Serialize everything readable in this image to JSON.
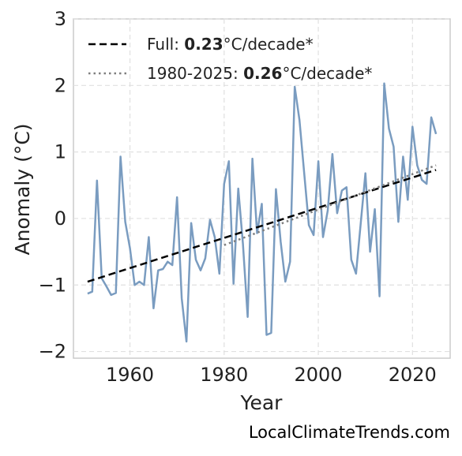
{
  "credit": "LocalClimateTrends.com",
  "legend": [
    {
      "prefix": "Full: ",
      "value": "0.23",
      "suffix": "°C/decade*",
      "style": "dashed",
      "color": "#000000"
    },
    {
      "prefix": "1980-2025: ",
      "value": "0.26",
      "suffix": "°C/decade*",
      "style": "dotted",
      "color": "#7f7f7f"
    }
  ],
  "chart_data": {
    "type": "line",
    "xlabel": "Year",
    "ylabel": "Anomaly (°C)",
    "xlim": [
      1948,
      2028
    ],
    "ylim": [
      -2.1,
      3.0
    ],
    "xticks": [
      1960,
      1980,
      2000,
      2020
    ],
    "yticks": [
      -2,
      -1,
      0,
      1,
      2,
      3
    ],
    "ytick_labels": [
      "−2",
      "−1",
      "0",
      "1",
      "2",
      "3"
    ],
    "grid": true,
    "legend_position": "top-left",
    "series": [
      {
        "color": "#7a9cc0",
        "x": [
          1951,
          1952,
          1953,
          1954,
          1955,
          1956,
          1957,
          1958,
          1959,
          1960,
          1961,
          1962,
          1963,
          1964,
          1965,
          1966,
          1967,
          1968,
          1969,
          1970,
          1971,
          1972,
          1973,
          1974,
          1975,
          1976,
          1977,
          1978,
          1979,
          1980,
          1981,
          1982,
          1983,
          1984,
          1985,
          1986,
          1987,
          1988,
          1989,
          1990,
          1991,
          1992,
          1993,
          1994,
          1995,
          1996,
          1997,
          1998,
          1999,
          2000,
          2001,
          2002,
          2003,
          2004,
          2005,
          2006,
          2007,
          2008,
          2009,
          2010,
          2011,
          2012,
          2013,
          2014,
          2015,
          2016,
          2017,
          2018,
          2019,
          2020,
          2021,
          2022,
          2023,
          2024,
          2025
        ],
        "values": [
          -1.13,
          -1.1,
          0.57,
          -0.9,
          -1.02,
          -1.15,
          -1.12,
          0.93,
          -0.05,
          -0.45,
          -1.0,
          -0.95,
          -1.0,
          -0.28,
          -1.35,
          -0.78,
          -0.76,
          -0.65,
          -0.7,
          0.32,
          -1.2,
          -1.85,
          -0.07,
          -0.62,
          -0.78,
          -0.6,
          -0.02,
          -0.28,
          -0.83,
          0.52,
          0.86,
          -0.98,
          0.45,
          -0.38,
          -1.48,
          0.9,
          -0.22,
          0.22,
          -1.75,
          -1.72,
          0.44,
          -0.35,
          -0.95,
          -0.65,
          1.98,
          1.48,
          0.68,
          -0.1,
          -0.25,
          0.86,
          -0.28,
          0.12,
          0.97,
          0.08,
          0.42,
          0.47,
          -0.62,
          -0.83,
          -0.08,
          0.68,
          -0.5,
          0.14,
          -1.17,
          2.03,
          1.35,
          1.08,
          -0.05,
          0.93,
          0.28,
          1.38,
          0.8,
          0.58,
          0.52,
          1.52,
          1.27
        ]
      }
    ],
    "trend_lines": [
      {
        "name": "Full",
        "x": [
          1951,
          2025
        ],
        "values": [
          -0.95,
          0.73
        ],
        "style": "dashed",
        "color": "#000000"
      },
      {
        "name": "1980-2025",
        "x": [
          1980,
          2025
        ],
        "values": [
          -0.4,
          0.8
        ],
        "style": "dotted",
        "color": "#7f7f7f"
      }
    ]
  }
}
